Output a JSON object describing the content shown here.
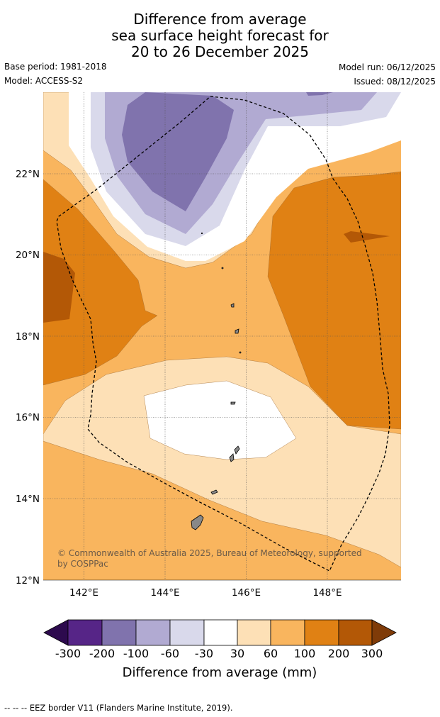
{
  "title": {
    "line1": "Difference from average",
    "line2": "sea surface height forecast for",
    "line3": "20 to 26 December 2025"
  },
  "meta": {
    "base_period": "Base period: 1981-2018",
    "model": "Model: ACCESS-S2",
    "model_run": "Model run: 06/12/2025",
    "issued": "Issued: 08/12/2025"
  },
  "map": {
    "lon_ticks": [
      "142°E",
      "144°E",
      "146°E",
      "148°E"
    ],
    "lat_ticks": [
      "22°N",
      "20°N",
      "18°N",
      "16°N",
      "14°N",
      "12°N"
    ],
    "copyright_line1": "© Commonwealth of Australia 2025, Bureau of Meteorology, supported",
    "copyright_line2": "by COSPPac",
    "lon_range": [
      141.0,
      149.8
    ],
    "lat_range": [
      12.0,
      24.0
    ]
  },
  "colorbar": {
    "title": "Difference from average (mm)",
    "labels": [
      "-300",
      "-200",
      "-100",
      "-60",
      "-30",
      "30",
      "60",
      "100",
      "200",
      "300"
    ],
    "colors": [
      "#2d0a4e",
      "#562587",
      "#8073ad",
      "#b1aad2",
      "#d9d9eb",
      "#ffffff",
      "#fde0b6",
      "#f9b55e",
      "#e08114",
      "#b35806",
      "#7f3b08"
    ]
  },
  "footer": {
    "legend_symbol": "--  --  --",
    "legend_text": "EEZ border V11 (Flanders Marine Institute, 2019)."
  }
}
